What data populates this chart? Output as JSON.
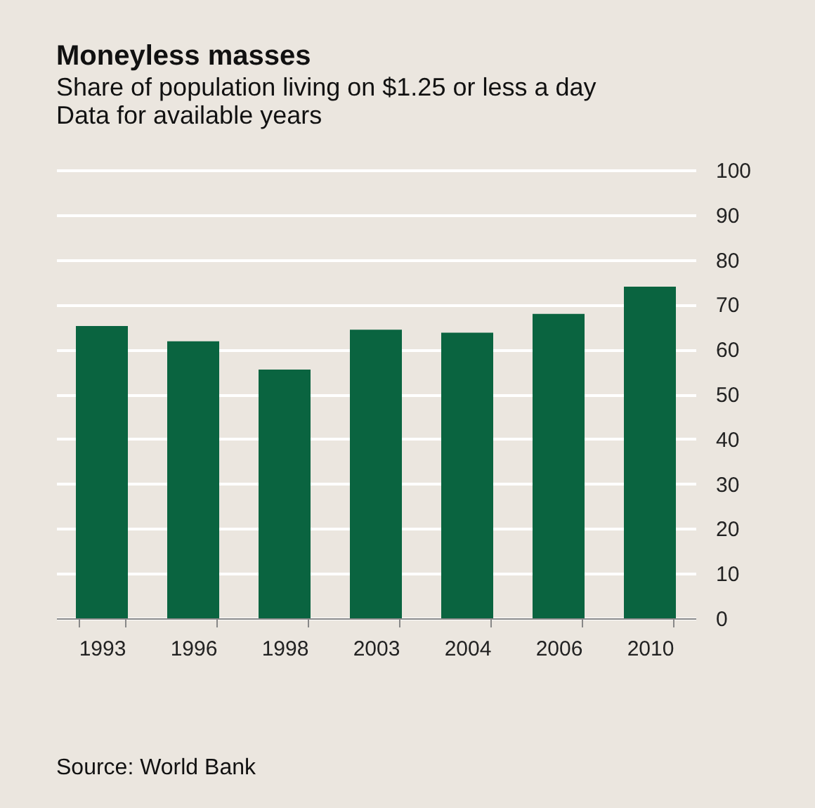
{
  "chart_data": {
    "type": "bar",
    "title": "Moneyless masses",
    "subtitle": [
      "Share of population living on $1.25 or less a day",
      "Data for available years"
    ],
    "categories": [
      "1993",
      "1996",
      "1998",
      "2003",
      "2004",
      "2006",
      "2010"
    ],
    "values": [
      65.2,
      61.8,
      55.5,
      64.4,
      63.7,
      67.9,
      74.0
    ],
    "color": "#0a6440",
    "ylim": [
      0,
      100
    ],
    "yticks": [
      0,
      10,
      20,
      30,
      40,
      50,
      60,
      70,
      80,
      90,
      100
    ],
    "grid": "y",
    "annotations": [
      "Source: World Bank"
    ]
  }
}
